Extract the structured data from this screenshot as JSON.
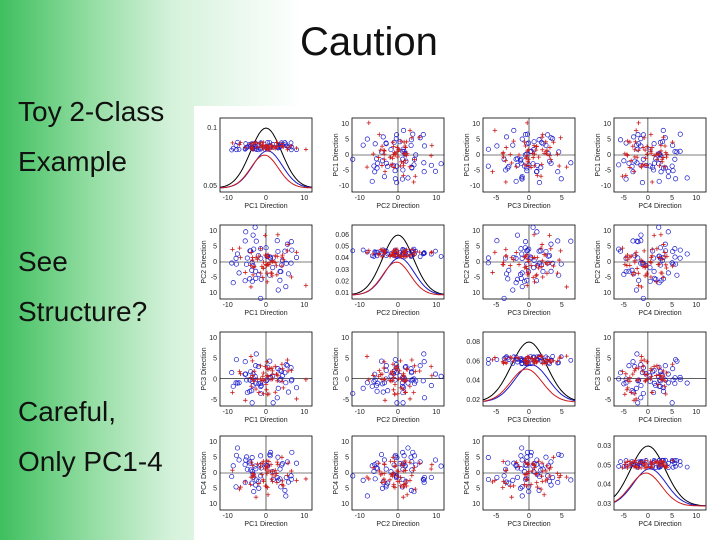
{
  "slide": {
    "title": "Caution",
    "bullets": [
      "Toy 2-Class",
      "Example",
      "See",
      "Structure?",
      "Careful,",
      "Only PC1-4"
    ]
  },
  "colors": {
    "class_a": "#1a1acc",
    "class_b": "#cc1a1a",
    "total_density": "#000000",
    "background_green": "#3fbf5f"
  },
  "chart_data": {
    "type": "scatter",
    "layout": "4x4 scatterplot matrix",
    "axes": [
      "PC1 Direction",
      "PC2 Direction",
      "PC3 Direction",
      "PC4 Direction"
    ],
    "ylabels": [
      "PC1 Direction",
      "PC2 Direction",
      "PC3 Direction",
      "PC4 Direction"
    ],
    "diagonal": "kernel density estimates with jittered points",
    "diag_yticks": [
      [
        "0.1",
        "0.05"
      ],
      [
        "0.06",
        "0.05",
        "0.04",
        "0.03",
        "0.02",
        "0.01"
      ],
      [
        "0.08",
        "0.06",
        "0.04",
        "0.02"
      ],
      [
        "0.03",
        "0.05",
        "0.04",
        "0.03"
      ]
    ],
    "offdiag_yticks": {
      "PC1": [
        "10",
        "5",
        "0",
        "-5",
        "-10"
      ],
      "PC2": [
        "10",
        "5",
        "0",
        "-5",
        "10"
      ],
      "PC3": [
        "10",
        "5",
        "0",
        "-5"
      ],
      "PC4": [
        "10",
        "5",
        "0",
        "5",
        "10"
      ]
    },
    "xticks": {
      "PC1": [
        "-10",
        "0",
        "10"
      ],
      "PC2": [
        "-10",
        "0",
        "10"
      ],
      "PC3": [
        "-5",
        "0",
        "5"
      ],
      "PC4": [
        "-5",
        "0",
        "5",
        "10"
      ]
    },
    "xlim": {
      "PC1": [
        -12,
        12
      ],
      "PC2": [
        -12,
        12
      ],
      "PC3": [
        -7,
        7
      ],
      "PC4": [
        -7,
        12
      ]
    },
    "ylim_offdiag": {
      "PC1": [
        -12,
        12
      ],
      "PC2": [
        -12,
        12
      ],
      "PC3": [
        -7,
        12
      ],
      "PC4": [
        -12,
        12
      ]
    },
    "series": [
      {
        "name": "",
        "marker": "o",
        "color": "#1a1acc"
      },
      {
        "name": "",
        "marker": "+",
        "color": "#cc1a1a"
      }
    ]
  }
}
